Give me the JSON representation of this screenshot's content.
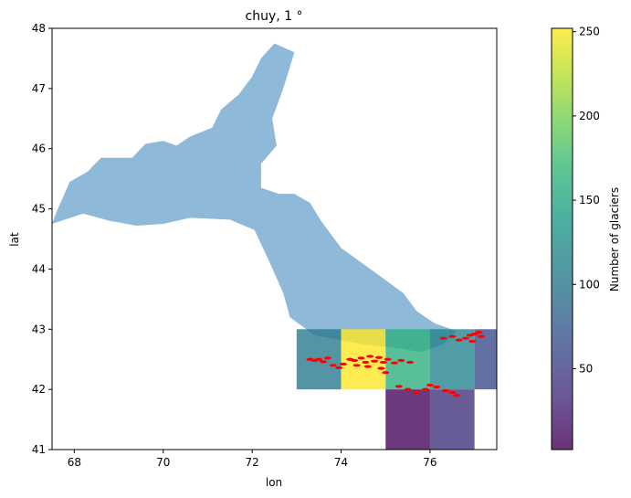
{
  "chart_data": {
    "type": "heatmap",
    "title": "chuy, 1 °",
    "xlabel": "lon",
    "ylabel": "lat",
    "xlim": [
      67.5,
      77.5
    ],
    "ylim": [
      41,
      48
    ],
    "xticks": [
      "68",
      "70",
      "72",
      "74",
      "76"
    ],
    "yticks": [
      "41",
      "42",
      "43",
      "44",
      "45",
      "46",
      "47",
      "48"
    ],
    "grid": false,
    "colorbar": {
      "label": "Number of glaciers",
      "colormap": "viridis",
      "range": [
        2,
        252
      ],
      "ticks": [
        "50",
        "100",
        "150",
        "200",
        "250"
      ],
      "alpha": 0.8
    },
    "basin_color": "#8fb9d8",
    "glacier_color": "#ff0000",
    "cells": [
      {
        "lon": 73,
        "lat": 42,
        "count": 105
      },
      {
        "lon": 74,
        "lat": 42,
        "count": 252
      },
      {
        "lon": 75,
        "lat": 42,
        "count": 160
      },
      {
        "lon": 76,
        "lat": 42,
        "count": 115
      },
      {
        "lon": 77,
        "lat": 42,
        "count": 60
      },
      {
        "lon": 75,
        "lat": 41,
        "count": 8
      },
      {
        "lon": 76,
        "lat": 41,
        "count": 40
      }
    ],
    "basin_outline": [
      [
        67.5,
        44.75
      ],
      [
        67.6,
        44.95
      ],
      [
        67.9,
        45.45
      ],
      [
        68.3,
        45.62
      ],
      [
        68.6,
        45.85
      ],
      [
        69.3,
        45.85
      ],
      [
        69.6,
        46.08
      ],
      [
        70.0,
        46.13
      ],
      [
        70.3,
        46.05
      ],
      [
        70.6,
        46.2
      ],
      [
        71.1,
        46.35
      ],
      [
        71.3,
        46.65
      ],
      [
        71.7,
        46.9
      ],
      [
        72.0,
        47.2
      ],
      [
        72.2,
        47.5
      ],
      [
        72.5,
        47.75
      ],
      [
        72.95,
        47.6
      ],
      [
        72.7,
        47.0
      ],
      [
        72.45,
        46.5
      ],
      [
        72.55,
        46.05
      ],
      [
        72.2,
        45.75
      ],
      [
        72.2,
        45.35
      ],
      [
        72.6,
        45.25
      ],
      [
        72.95,
        45.25
      ],
      [
        73.3,
        45.1
      ],
      [
        73.55,
        44.8
      ],
      [
        74.0,
        44.35
      ],
      [
        74.75,
        43.95
      ],
      [
        75.4,
        43.6
      ],
      [
        75.7,
        43.3
      ],
      [
        76.1,
        43.1
      ],
      [
        76.6,
        42.97
      ],
      [
        76.3,
        42.75
      ],
      [
        75.8,
        42.62
      ],
      [
        75.3,
        42.68
      ],
      [
        74.5,
        42.75
      ],
      [
        73.4,
        42.9
      ],
      [
        72.85,
        43.2
      ],
      [
        72.7,
        43.6
      ],
      [
        72.4,
        44.1
      ],
      [
        72.05,
        44.65
      ],
      [
        71.5,
        44.82
      ],
      [
        70.6,
        44.85
      ],
      [
        70.0,
        44.75
      ],
      [
        69.4,
        44.72
      ],
      [
        68.8,
        44.8
      ],
      [
        68.2,
        44.92
      ],
      [
        67.5,
        44.75
      ]
    ],
    "glacier_points": [
      [
        73.3,
        42.5
      ],
      [
        73.4,
        42.48
      ],
      [
        73.5,
        42.5
      ],
      [
        73.6,
        42.46
      ],
      [
        73.7,
        42.52
      ],
      [
        73.82,
        42.4
      ],
      [
        73.95,
        42.36
      ],
      [
        74.05,
        42.42
      ],
      [
        74.2,
        42.5
      ],
      [
        74.3,
        42.48
      ],
      [
        74.45,
        42.52
      ],
      [
        74.55,
        42.45
      ],
      [
        74.65,
        42.55
      ],
      [
        74.75,
        42.47
      ],
      [
        74.85,
        42.53
      ],
      [
        74.95,
        42.45
      ],
      [
        75.05,
        42.5
      ],
      [
        75.2,
        42.44
      ],
      [
        75.35,
        42.48
      ],
      [
        75.55,
        42.45
      ],
      [
        74.35,
        42.4
      ],
      [
        74.6,
        42.38
      ],
      [
        74.9,
        42.35
      ],
      [
        75.0,
        42.28
      ],
      [
        75.3,
        42.05
      ],
      [
        75.5,
        42.0
      ],
      [
        75.7,
        41.95
      ],
      [
        75.9,
        42.0
      ],
      [
        76.0,
        42.07
      ],
      [
        76.15,
        42.04
      ],
      [
        76.35,
        41.98
      ],
      [
        76.5,
        41.95
      ],
      [
        76.6,
        41.9
      ],
      [
        76.3,
        42.85
      ],
      [
        76.5,
        42.88
      ],
      [
        76.65,
        42.82
      ],
      [
        76.8,
        42.85
      ],
      [
        76.9,
        42.9
      ],
      [
        77.0,
        42.92
      ],
      [
        77.1,
        42.95
      ],
      [
        77.15,
        42.88
      ],
      [
        76.95,
        42.8
      ]
    ]
  }
}
